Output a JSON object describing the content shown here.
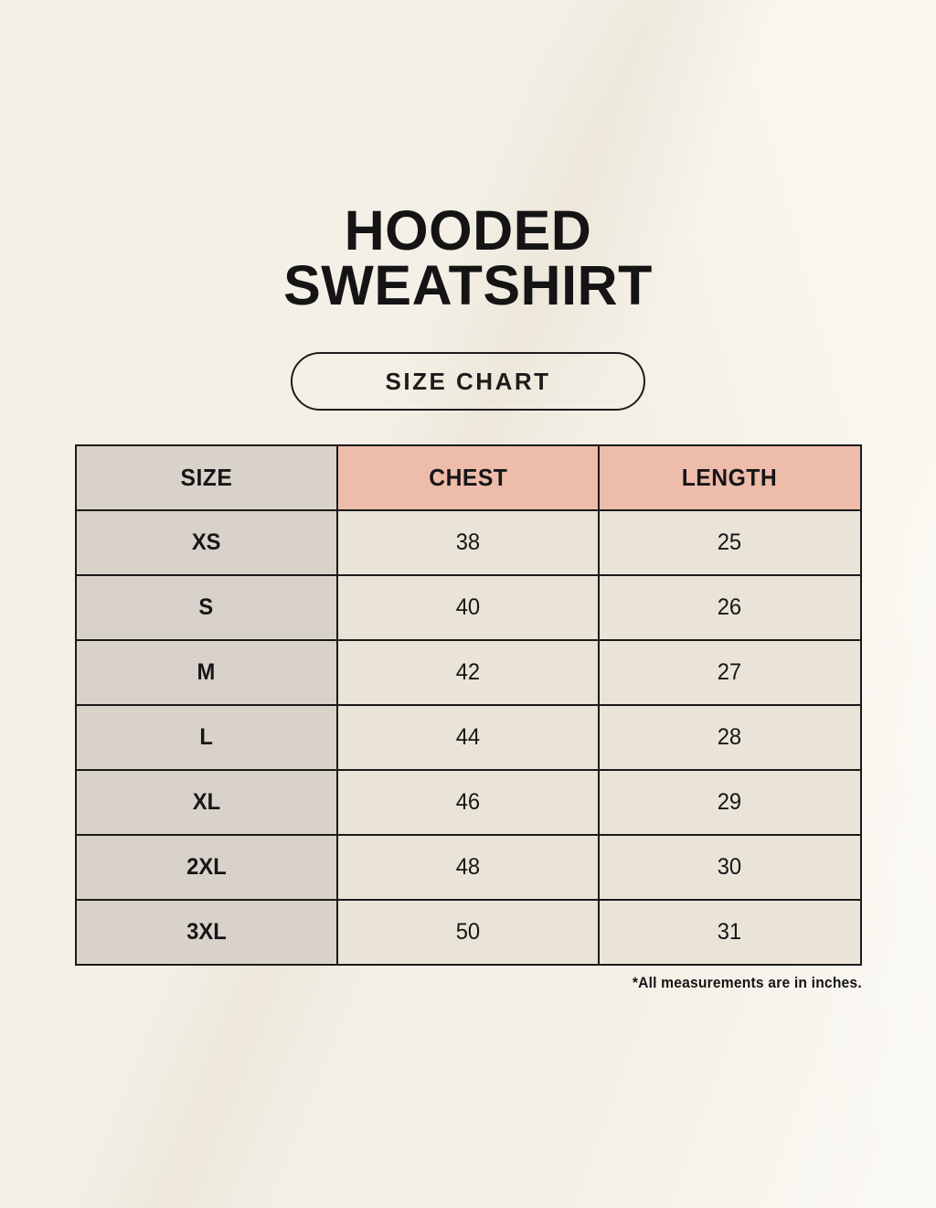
{
  "header": {
    "title_line1": "HOODED",
    "title_line2": "SWEATSHIRT",
    "size_chart_button_label": "SIZE CHART"
  },
  "chart_data": {
    "type": "table",
    "title": "HOODED SWEATSHIRT",
    "subtitle": "SIZE CHART",
    "columns": [
      "SIZE",
      "CHEST",
      "LENGTH"
    ],
    "rows": [
      [
        "XS",
        38,
        25
      ],
      [
        "S",
        40,
        26
      ],
      [
        "M",
        42,
        27
      ],
      [
        "L",
        44,
        28
      ],
      [
        "XL",
        46,
        29
      ],
      [
        "2XL",
        48,
        30
      ],
      [
        "3XL",
        50,
        31
      ]
    ],
    "footnote": "*All measurements are in inches.",
    "units": "inches"
  },
  "colors": {
    "page_background": "#f9f6ee",
    "table_border": "#1a1a1a",
    "accent_header_bg": "#eebcab",
    "size_column_bg": "#d9d2cb",
    "value_cell_bg": "#eae4d8",
    "text": "#161616"
  }
}
